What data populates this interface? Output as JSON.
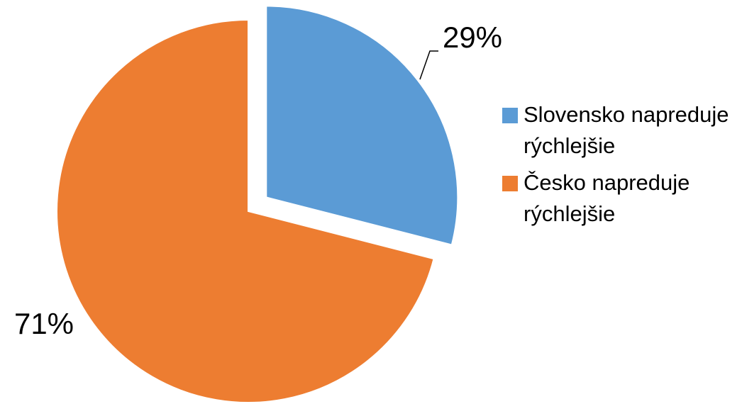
{
  "chart_data": {
    "type": "pie",
    "categories": [
      "Slovensko napreduje rýchlejšie",
      "Česko napreduje rýchlejšie"
    ],
    "values": [
      29,
      71
    ],
    "value_labels": [
      "29%",
      "71%"
    ],
    "colors": [
      "#5b9bd5",
      "#ed7d31"
    ]
  }
}
